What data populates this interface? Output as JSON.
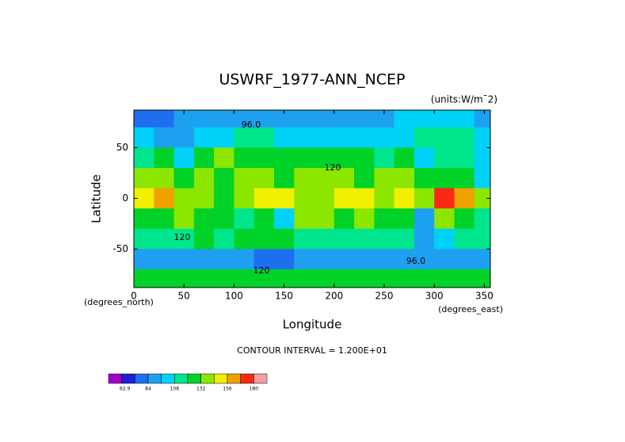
{
  "chart_data": {
    "type": "contour",
    "title": "USWRF_1977-ANN_NCEP",
    "units": "(units:W/m¯2)",
    "x_label": "Longitude",
    "y_label": "Latitude",
    "x_units": "(degrees_east)",
    "y_units": "(degrees_north)",
    "footnote": "CONTOUR INTERVAL = 1.200E+01",
    "contour_labels": [
      "96.0",
      "120",
      "120",
      "96.0",
      "120"
    ],
    "x": [
      10,
      30,
      50,
      70,
      90,
      110,
      130,
      150,
      170,
      190,
      210,
      230,
      250,
      270,
      290,
      310,
      330,
      350
    ],
    "y": [
      80,
      60,
      40,
      20,
      0,
      -20,
      -40,
      -60,
      -80
    ],
    "values": [
      [
        72,
        72,
        84,
        90,
        90,
        90,
        90,
        90,
        90,
        90,
        90,
        90,
        90,
        96,
        102,
        102,
        96,
        90
      ],
      [
        102,
        90,
        90,
        102,
        102,
        114,
        108,
        102,
        102,
        102,
        102,
        102,
        102,
        96,
        114,
        114,
        108,
        102
      ],
      [
        114,
        120,
        102,
        126,
        132,
        126,
        126,
        126,
        120,
        120,
        126,
        120,
        114,
        120,
        102,
        114,
        114,
        102
      ],
      [
        132,
        138,
        126,
        132,
        126,
        138,
        132,
        126,
        138,
        138,
        132,
        126,
        132,
        138,
        126,
        120,
        126,
        102
      ],
      [
        150,
        162,
        138,
        132,
        120,
        138,
        150,
        150,
        138,
        138,
        150,
        144,
        138,
        144,
        138,
        168,
        162,
        138
      ],
      [
        126,
        120,
        138,
        126,
        126,
        114,
        126,
        102,
        138,
        138,
        126,
        132,
        120,
        120,
        90,
        138,
        126,
        114
      ],
      [
        114,
        114,
        114,
        120,
        114,
        120,
        126,
        120,
        108,
        114,
        114,
        114,
        114,
        114,
        90,
        102,
        114,
        114
      ],
      [
        90,
        90,
        90,
        90,
        90,
        90,
        78,
        78,
        90,
        90,
        90,
        90,
        90,
        90,
        90,
        84,
        90,
        90
      ],
      [
        120,
        120,
        120,
        120,
        120,
        120,
        120,
        120,
        120,
        120,
        120,
        120,
        120,
        120,
        120,
        120,
        120,
        120
      ]
    ],
    "xlim": [
      0,
      356
    ],
    "ylim": [
      -88,
      87
    ],
    "xticks": [
      0,
      50,
      100,
      150,
      200,
      250,
      300,
      350
    ],
    "yticks": [
      -50,
      0,
      50
    ],
    "colorbar": {
      "levels": [
        48,
        60,
        72,
        84,
        96,
        108,
        120,
        132,
        144,
        156,
        168,
        180,
        192
      ],
      "colors": [
        "#a000c8",
        "#1e1ed2",
        "#1e6ef0",
        "#1ea0f0",
        "#00d2fa",
        "#00e68c",
        "#00d228",
        "#8ce600",
        "#f0f000",
        "#f0a000",
        "#fa2814",
        "#f0a0a0"
      ],
      "ticks": [
        62.9,
        84,
        108,
        132,
        156,
        180
      ]
    }
  }
}
